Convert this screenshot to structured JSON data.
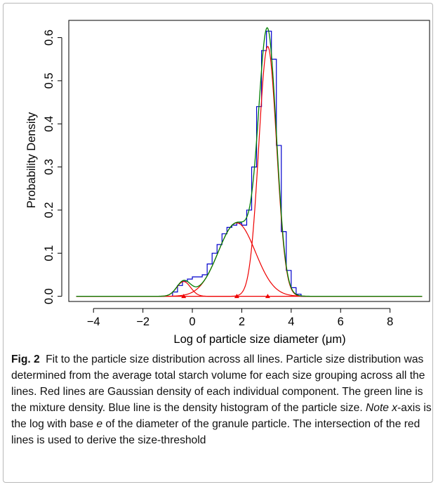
{
  "chart_data": {
    "type": "line",
    "title": "",
    "xlabel": "Log of particle size diameter (μm)",
    "ylabel": "Probability Density",
    "xlim": [
      -5.0,
      9.6
    ],
    "ylim": [
      -0.012,
      0.64
    ],
    "xticks": [
      -4,
      -2,
      0,
      2,
      4,
      6,
      8
    ],
    "xtick_labels": [
      "−4",
      "−2",
      "0",
      "2",
      "4",
      "6",
      "8"
    ],
    "yticks": [
      0.0,
      0.1,
      0.2,
      0.3,
      0.4,
      0.5,
      0.6
    ],
    "ytick_labels": [
      "0.0",
      "0.1",
      "0.2",
      "0.3",
      "0.4",
      "0.5",
      "0.6"
    ],
    "grid": false,
    "legend": "none",
    "colors": {
      "histogram": "#0000cc",
      "mixture": "#008000",
      "components": "#ee0000",
      "axes": "#000000"
    },
    "components": [
      {
        "mean": -0.35,
        "sd": 0.28,
        "weight": 0.024
      },
      {
        "mean": 1.8,
        "sd": 0.75,
        "weight": 0.32
      },
      {
        "mean": 3.05,
        "sd": 0.36,
        "weight": 0.523
      }
    ],
    "component_mean_markers": [
      -0.35,
      1.8,
      3.05
    ],
    "histogram": {
      "bin_edges": [
        -0.8,
        -0.6,
        -0.4,
        -0.2,
        0.0,
        0.2,
        0.4,
        0.6,
        0.8,
        1.0,
        1.2,
        1.4,
        1.6,
        1.8,
        2.0,
        2.2,
        2.4,
        2.6,
        2.8,
        3.0,
        3.2,
        3.4,
        3.6,
        3.8,
        4.0,
        4.2,
        4.4,
        4.6
      ],
      "density": [
        0.01,
        0.025,
        0.035,
        0.04,
        0.045,
        0.045,
        0.05,
        0.075,
        0.1,
        0.12,
        0.145,
        0.16,
        0.165,
        0.17,
        0.165,
        0.2,
        0.3,
        0.44,
        0.57,
        0.615,
        0.55,
        0.35,
        0.15,
        0.06,
        0.02,
        0.005,
        0.0
      ]
    }
  },
  "caption": {
    "label": "Fig. 2",
    "text_1": "Fit to the particle size distribution across all lines. Particle size distribution was determined from the average total starch volume for each size grouping across all the lines. Red lines are Gaussian density of each individual component. The green line is the mixture density. Blue line is the density histogram of the particle size.",
    "note_label": "Note x",
    "text_2": "-axis is the log with base",
    "base_e": "e",
    "text_3": "of the diameter of the granule particle. The intersection of the red lines is used to derive the size-threshold"
  }
}
